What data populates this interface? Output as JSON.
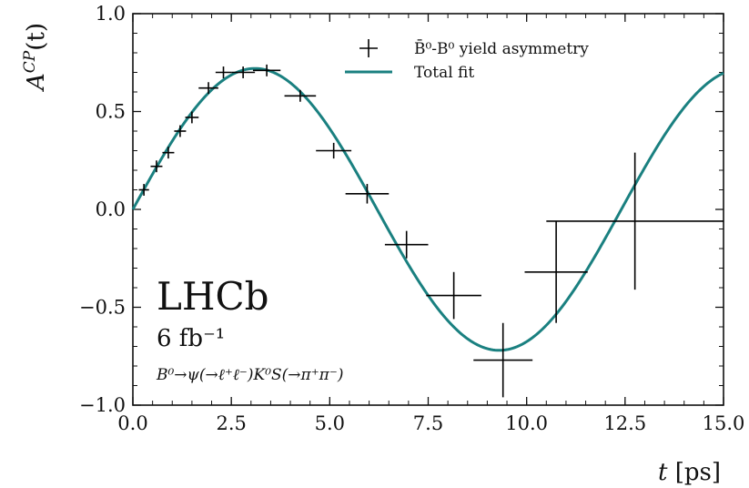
{
  "chart_data": {
    "type": "scatter",
    "xlim": [
      0.0,
      15.0
    ],
    "ylim": [
      -1.0,
      1.0
    ],
    "xlabel_var": "t",
    "xlabel_unit": "[ps]",
    "ylabel_base": "A",
    "ylabel_sup": "CP",
    "ylabel_arg": "(t)",
    "x_ticks": [
      "0.0",
      "2.5",
      "5.0",
      "7.5",
      "10.0",
      "12.5",
      "15.0"
    ],
    "x_tick_values": [
      0,
      2.5,
      5,
      7.5,
      10,
      12.5,
      15
    ],
    "y_ticks": [
      "−1.0",
      "−0.5",
      "0.0",
      "0.5",
      "1.0"
    ],
    "y_tick_values": [
      -1,
      -0.5,
      0,
      0.5,
      1
    ],
    "grid": false,
    "legend_position": "top-right",
    "legend": {
      "data_label": "B̄⁰-B⁰ yield asymmetry",
      "fit_label": "Total fit"
    },
    "experiment": {
      "name": "LHCb",
      "luminosity": "6 fb⁻¹",
      "decay": "B⁰→ψ(→ℓ⁺ℓ⁻)K⁰S(→π⁺π⁻)"
    },
    "colors": {
      "fit": "#1a8080",
      "data": "#000000"
    },
    "series": [
      {
        "name": "B̄⁰-B⁰ yield asymmetry",
        "points": [
          {
            "x": 0.28,
            "y": 0.1,
            "xerr": 0.13,
            "yerr": 0.03
          },
          {
            "x": 0.6,
            "y": 0.22,
            "xerr": 0.15,
            "yerr": 0.03
          },
          {
            "x": 0.9,
            "y": 0.29,
            "xerr": 0.15,
            "yerr": 0.03
          },
          {
            "x": 1.2,
            "y": 0.4,
            "xerr": 0.15,
            "yerr": 0.03
          },
          {
            "x": 1.5,
            "y": 0.47,
            "xerr": 0.17,
            "yerr": 0.03
          },
          {
            "x": 1.92,
            "y": 0.62,
            "xerr": 0.25,
            "yerr": 0.03
          },
          {
            "x": 2.3,
            "y": 0.7,
            "xerr": 0.2,
            "yerr": 0.03
          },
          {
            "x": 2.8,
            "y": 0.7,
            "xerr": 0.3,
            "yerr": 0.03
          },
          {
            "x": 3.4,
            "y": 0.71,
            "xerr": 0.35,
            "yerr": 0.03
          },
          {
            "x": 4.25,
            "y": 0.58,
            "xerr": 0.4,
            "yerr": 0.03
          },
          {
            "x": 5.1,
            "y": 0.3,
            "xerr": 0.45,
            "yerr": 0.04
          },
          {
            "x": 5.95,
            "y": 0.08,
            "xerr": 0.55,
            "yerr": 0.05
          },
          {
            "x": 6.95,
            "y": -0.18,
            "xerr": 0.55,
            "yerr": 0.07
          },
          {
            "x": 8.15,
            "y": -0.44,
            "xerr": 0.7,
            "yerr": 0.12
          },
          {
            "x": 9.4,
            "y": -0.77,
            "xerr": 0.75,
            "yerr": 0.19
          },
          {
            "x": 10.75,
            "y": -0.32,
            "xerr": 0.8,
            "yerr": 0.26
          },
          {
            "x": 12.75,
            "y": -0.06,
            "xerr": 2.25,
            "yerr": 0.35
          }
        ]
      },
      {
        "name": "Total fit",
        "function": "A(t) = S·sin(Δm·t)",
        "S": 0.72,
        "dm": 0.5065
      }
    ]
  }
}
